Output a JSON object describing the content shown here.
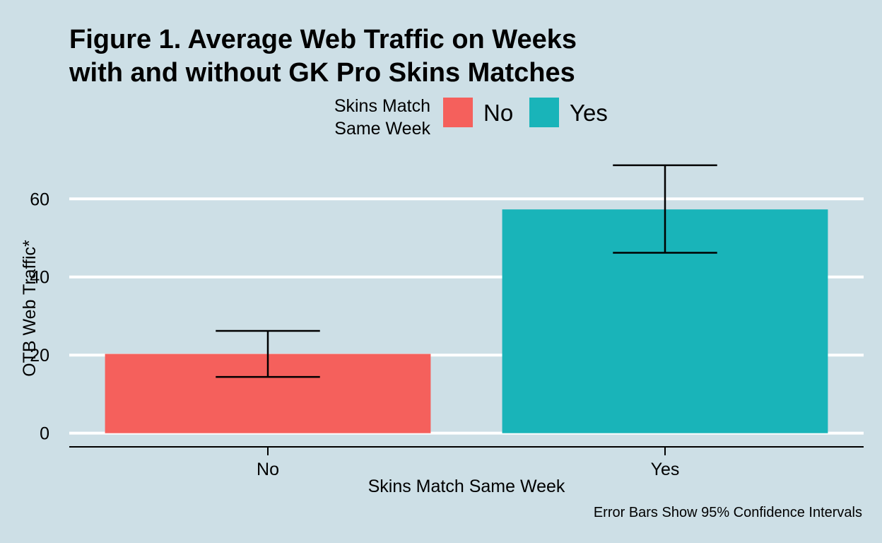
{
  "chart_data": {
    "type": "bar",
    "title_lines": [
      "Figure 1. Average Web Traffic on Weeks",
      "with and without GK Pro Skins Matches"
    ],
    "xlabel": "Skins Match Same Week",
    "ylabel": "OTB Web Traffic*",
    "caption": "Error Bars Show 95% Confidence Intervals",
    "categories": [
      "No",
      "Yes"
    ],
    "values": [
      20.3,
      57.3
    ],
    "error_bars": [
      {
        "lower": 14.4,
        "upper": 26.2
      },
      {
        "lower": 46.2,
        "upper": 68.6
      }
    ],
    "colors": [
      "#f5605c",
      "#19b4b9"
    ],
    "ylim": [
      -3.5,
      72
    ],
    "yticks": [
      0,
      20,
      40,
      60
    ],
    "grid": "horizontal, white",
    "legend": {
      "title_lines": [
        "Skins Match",
        "Same Week"
      ],
      "placement": "top",
      "entries": [
        {
          "label": "No",
          "color": "#f5605c"
        },
        {
          "label": "Yes",
          "color": "#19b4b9"
        }
      ]
    },
    "background_color": "#cddfe6"
  }
}
